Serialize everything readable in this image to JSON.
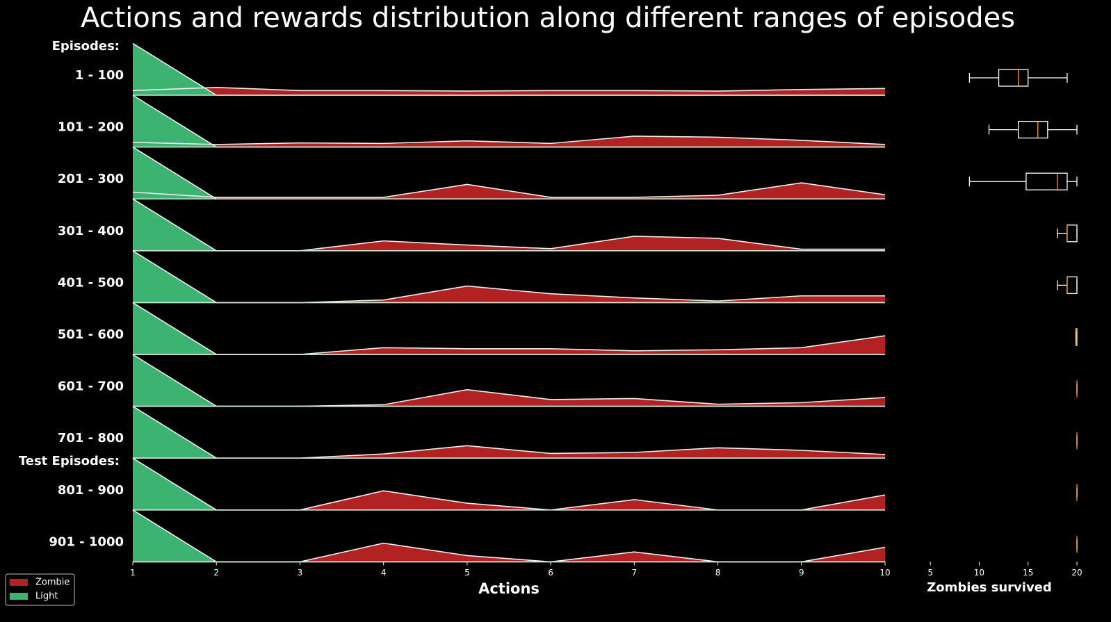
{
  "title": "Actions and rewards distribution along different ranges of episodes",
  "chart_data": [
    {
      "type": "ridge",
      "sections": [
        "Episodes:",
        "Test Episodes:"
      ],
      "x": [
        1,
        2,
        3,
        4,
        5,
        6,
        7,
        8,
        9,
        10
      ],
      "xlim": [
        1,
        10
      ],
      "xticks": [
        1,
        2,
        3,
        4,
        5,
        6,
        7,
        8,
        9,
        10
      ],
      "ylim": [
        0,
        1
      ],
      "xlabel": "Actions",
      "legend": [
        {
          "name": "Zombie",
          "color": "#b22222"
        },
        {
          "name": "Light",
          "color": "#3cb371"
        }
      ],
      "rows": [
        {
          "label": "1 - 100",
          "zombie": [
            0.09,
            0.15,
            0.09,
            0.09,
            0.08,
            0.09,
            0.09,
            0.08,
            0.11,
            0.13
          ],
          "light": [
            1,
            0,
            0,
            0,
            0,
            0,
            0,
            0,
            0,
            0
          ]
        },
        {
          "label": "101 - 200",
          "zombie": [
            0.09,
            0.05,
            0.08,
            0.07,
            0.12,
            0.07,
            0.21,
            0.19,
            0.13,
            0.05
          ],
          "light": [
            1,
            0,
            0,
            0,
            0,
            0,
            0,
            0,
            0,
            0
          ]
        },
        {
          "label": "201 - 300",
          "zombie": [
            0.13,
            0.03,
            0.03,
            0.03,
            0.28,
            0.03,
            0.03,
            0.07,
            0.31,
            0.08
          ],
          "light": [
            1,
            0,
            0,
            0,
            0,
            0,
            0,
            0,
            0,
            0
          ]
        },
        {
          "label": "301 - 400",
          "zombie": [
            0,
            0,
            0,
            0.19,
            0.11,
            0.04,
            0.28,
            0.24,
            0.03,
            0.03
          ],
          "light": [
            1,
            0,
            0,
            0,
            0,
            0,
            0,
            0,
            0,
            0
          ]
        },
        {
          "label": "401 - 500",
          "zombie": [
            0,
            0,
            0,
            0.05,
            0.32,
            0.17,
            0.09,
            0.03,
            0.13,
            0.13
          ],
          "light": [
            1,
            0,
            0,
            0,
            0,
            0,
            0,
            0,
            0,
            0
          ]
        },
        {
          "label": "501 - 600",
          "zombie": [
            0,
            0,
            0,
            0.13,
            0.11,
            0.11,
            0.07,
            0.09,
            0.13,
            0.36
          ],
          "light": [
            1,
            0,
            0,
            0,
            0,
            0,
            0,
            0,
            0,
            0
          ]
        },
        {
          "label": "601 - 700",
          "zombie": [
            0,
            0,
            0,
            0.03,
            0.32,
            0.13,
            0.15,
            0.04,
            0.07,
            0.17
          ],
          "light": [
            1,
            0,
            0,
            0,
            0,
            0,
            0,
            0,
            0,
            0
          ]
        },
        {
          "label": "701 - 800",
          "zombie": [
            0,
            0,
            0,
            0.08,
            0.24,
            0.09,
            0.11,
            0.2,
            0.15,
            0.07
          ],
          "light": [
            1,
            0,
            0,
            0,
            0,
            0,
            0,
            0,
            0,
            0
          ]
        },
        {
          "label": "801 - 900",
          "zombie": [
            0,
            0,
            0,
            0.37,
            0.13,
            0,
            0.2,
            0,
            0,
            0.29
          ],
          "light": [
            1,
            0,
            0,
            0,
            0,
            0,
            0,
            0,
            0,
            0
          ]
        },
        {
          "label": "901 - 1000",
          "zombie": [
            0,
            0,
            0,
            0.36,
            0.12,
            0,
            0.19,
            0,
            0,
            0.28
          ],
          "light": [
            1,
            0,
            0,
            0,
            0,
            0,
            0,
            0,
            0,
            0
          ]
        }
      ]
    },
    {
      "type": "box",
      "xlim": [
        2,
        20
      ],
      "xticks": [
        5,
        10,
        15,
        20
      ],
      "xlabel": "Zombies survived",
      "color": "#ffffff",
      "median_color": "#ff9f1c",
      "boxes": [
        [
          9,
          12,
          14,
          15,
          19
        ],
        [
          11,
          14,
          16,
          17,
          20
        ],
        [
          9,
          14.8,
          18,
          19,
          20
        ],
        [
          18,
          19,
          19,
          20,
          20
        ],
        [
          18,
          19,
          19,
          20,
          20
        ],
        [
          19.9,
          19.9,
          20,
          20,
          20
        ],
        [
          20,
          20,
          20,
          20,
          20
        ],
        [
          20,
          20,
          20,
          20,
          20
        ],
        [
          20,
          20,
          20,
          20,
          20
        ],
        [
          20,
          20,
          20,
          20,
          20
        ]
      ]
    }
  ]
}
